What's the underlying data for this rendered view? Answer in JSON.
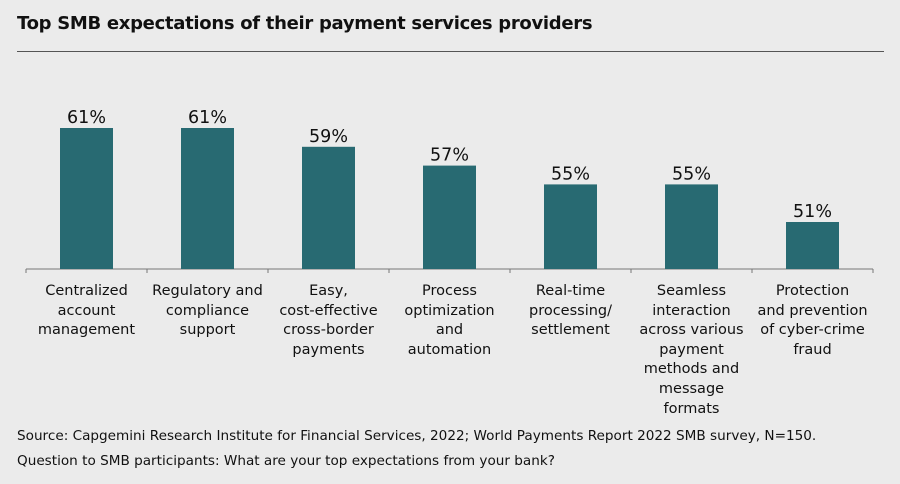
{
  "chart_data": {
    "type": "bar",
    "title": "Top SMB expectations of their payment services providers",
    "categories": [
      [
        "Centralized",
        "account",
        "management"
      ],
      [
        "Regulatory and",
        "compliance",
        "support"
      ],
      [
        "Easy,",
        "cost-effective",
        "cross-border",
        "payments"
      ],
      [
        "Process",
        "optimization",
        "and",
        "automation"
      ],
      [
        "Real-time",
        "processing/",
        "settlement"
      ],
      [
        "Seamless",
        "interaction",
        "across various",
        "payment",
        "methods and",
        "message formats"
      ],
      [
        "Protection",
        "and prevention",
        "of cyber-crime",
        "fraud"
      ]
    ],
    "values": [
      61,
      61,
      59,
      57,
      55,
      55,
      51
    ],
    "value_labels": [
      "61%",
      "61%",
      "59%",
      "57%",
      "55%",
      "55%",
      "51%"
    ],
    "xlabel": "",
    "ylabel": "",
    "ylim": [
      46,
      62
    ],
    "grid": false,
    "bar_color": "#286a72"
  },
  "footer": {
    "source": "Source: Capgemini Research Institute for Financial Services, 2022; World Payments Report 2022 SMB survey, N=150.",
    "question": "Question to SMB participants: What are your top expectations from your bank?"
  }
}
